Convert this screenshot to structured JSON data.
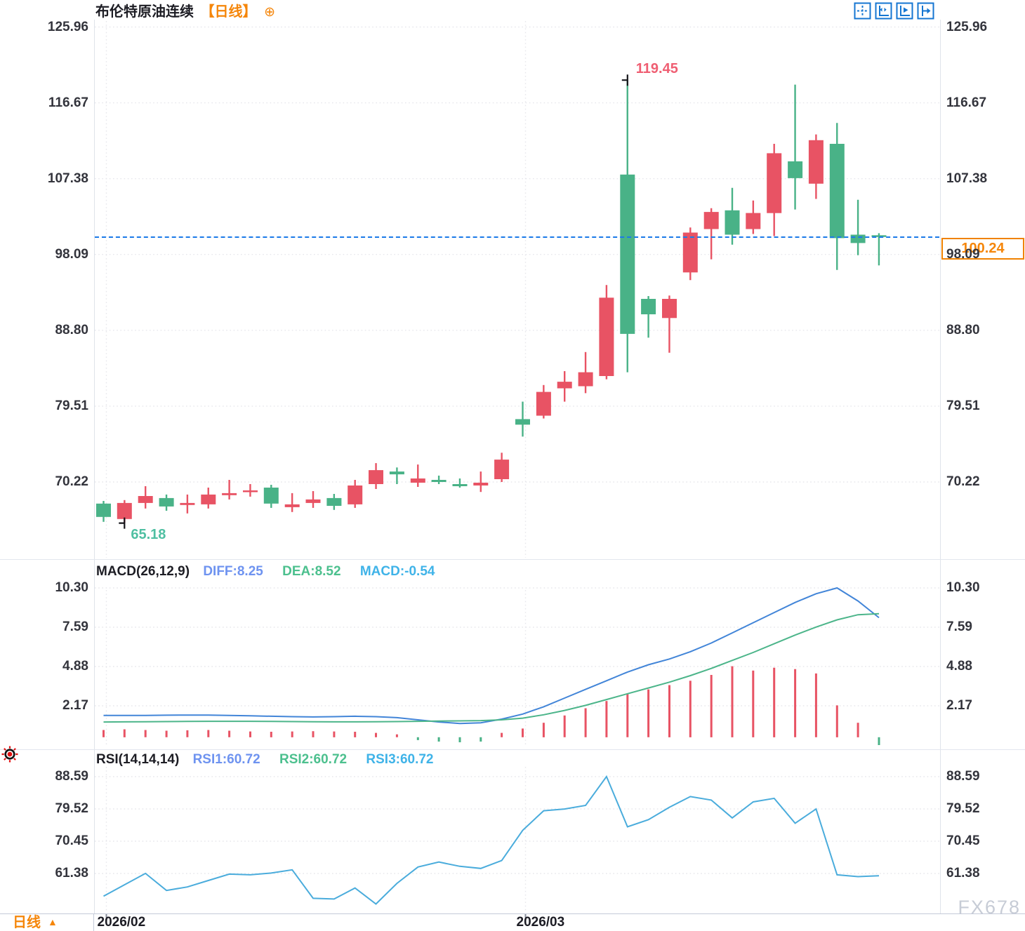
{
  "header": {
    "title": "布伦特原油连续",
    "period_tag": "【日线】",
    "add_icon": "⊕"
  },
  "toolbar": {
    "icons": [
      "pan-crosshair",
      "axis-fit",
      "axis-play",
      "shift-right"
    ]
  },
  "price_panel": {
    "high_label": "119.45",
    "low_label": "65.18",
    "current_price": "100.24"
  },
  "macd_panel": {
    "name_label": "MACD(26,12,9)",
    "diff_label": "DIFF:8.25",
    "dea_label": "DEA:8.52",
    "macd_label": "MACD:-0.54"
  },
  "rsi_panel": {
    "name_label": "RSI(14,14,14)",
    "rsi1_label": "RSI1:60.72",
    "rsi2_label": "RSI2:60.72",
    "rsi3_label": "RSI3:60.72"
  },
  "bottom_bar": {
    "period_label": "日线",
    "dropdown_arrow": "▲",
    "watermark": "FX678"
  },
  "colors": {
    "up": "#e85364",
    "down": "#49b287",
    "accent_orange": "#f5860a",
    "toolbar_blue": "#1576d2",
    "current_price_line": "#1b7ae8",
    "diff_line": "#4285d8",
    "dea_line": "#4cb58a",
    "rsi_line": "#4aacdc",
    "grid": "#e7e7ec",
    "marker_cross": "#15151a"
  },
  "chart_data": {
    "type": "candlestick",
    "title": "布伦特原油连续",
    "interval": "日线",
    "price_axis": {
      "ticks": [
        125.96,
        116.67,
        107.38,
        98.09,
        88.8,
        79.51,
        70.22
      ],
      "high_marker": 119.45,
      "low_marker": 65.18,
      "last_price": 100.24,
      "grid": true
    },
    "candles": [
      [
        67.57,
        67.9,
        65.34,
        65.94
      ],
      [
        65.68,
        68.0,
        65.18,
        67.65
      ],
      [
        67.65,
        69.7,
        66.97,
        68.5
      ],
      [
        68.25,
        68.68,
        66.7,
        67.22
      ],
      [
        67.4,
        68.68,
        66.37,
        67.65
      ],
      [
        67.48,
        69.53,
        66.97,
        68.68
      ],
      [
        68.6,
        70.48,
        68.08,
        68.85
      ],
      [
        69.0,
        69.96,
        68.42,
        69.19
      ],
      [
        69.53,
        69.88,
        67.05,
        67.57
      ],
      [
        67.14,
        68.85,
        66.54,
        67.48
      ],
      [
        67.65,
        69.1,
        67.05,
        68.08
      ],
      [
        68.25,
        68.76,
        66.8,
        67.3
      ],
      [
        67.48,
        70.48,
        67.05,
        69.79
      ],
      [
        69.96,
        72.53,
        69.36,
        71.67
      ],
      [
        71.5,
        72.0,
        69.96,
        71.16
      ],
      [
        70.13,
        72.36,
        69.62,
        70.65
      ],
      [
        70.48,
        71.0,
        69.96,
        70.22
      ],
      [
        69.96,
        70.65,
        69.53,
        69.7
      ],
      [
        69.79,
        71.5,
        69.0,
        70.13
      ],
      [
        70.56,
        73.8,
        70.22,
        72.96
      ],
      [
        77.92,
        80.06,
        75.78,
        77.24
      ],
      [
        78.35,
        82.1,
        78.0,
        81.26
      ],
      [
        81.69,
        83.8,
        80.06,
        82.5
      ],
      [
        81.95,
        86.14,
        81.1,
        83.66
      ],
      [
        83.2,
        94.35,
        82.8,
        92.8
      ],
      [
        107.88,
        119.45,
        83.66,
        88.36
      ],
      [
        92.65,
        93.0,
        87.9,
        90.76
      ],
      [
        90.3,
        93.07,
        86.05,
        92.65
      ],
      [
        95.9,
        101.4,
        94.95,
        100.78
      ],
      [
        101.2,
        103.77,
        97.5,
        103.3
      ],
      [
        103.5,
        106.25,
        99.3,
        100.52
      ],
      [
        101.2,
        104.7,
        100.6,
        103.17
      ],
      [
        103.17,
        111.65,
        100.35,
        110.5
      ],
      [
        109.5,
        118.9,
        103.6,
        107.45
      ],
      [
        106.77,
        112.8,
        104.9,
        112.1
      ],
      [
        111.65,
        114.2,
        96.2,
        100.1
      ],
      [
        100.52,
        104.8,
        98.0,
        99.5
      ],
      [
        100.45,
        100.7,
        96.75,
        100.24
      ]
    ],
    "macd": {
      "params": "26,12,9",
      "diff": 8.25,
      "dea": 8.52,
      "macd": -0.54,
      "axis_ticks": [
        10.3,
        7.59,
        4.88,
        2.17
      ],
      "diff_series": [
        1.5,
        1.5,
        1.5,
        1.52,
        1.53,
        1.53,
        1.5,
        1.48,
        1.45,
        1.42,
        1.4,
        1.42,
        1.45,
        1.42,
        1.35,
        1.2,
        1.05,
        0.95,
        1.0,
        1.25,
        1.6,
        2.1,
        2.7,
        3.3,
        3.9,
        4.5,
        5.0,
        5.4,
        5.9,
        6.5,
        7.2,
        7.9,
        8.6,
        9.3,
        9.9,
        10.3,
        9.4,
        8.25
      ],
      "dea_series": [
        1.05,
        1.06,
        1.07,
        1.08,
        1.09,
        1.1,
        1.1,
        1.1,
        1.09,
        1.08,
        1.07,
        1.06,
        1.06,
        1.07,
        1.08,
        1.1,
        1.12,
        1.13,
        1.15,
        1.2,
        1.32,
        1.55,
        1.85,
        2.2,
        2.6,
        3.0,
        3.4,
        3.8,
        4.25,
        4.75,
        5.3,
        5.85,
        6.45,
        7.05,
        7.6,
        8.1,
        8.45,
        8.52
      ],
      "histogram": [
        0.5,
        0.55,
        0.5,
        0.45,
        0.48,
        0.5,
        0.45,
        0.4,
        0.38,
        0.4,
        0.42,
        0.4,
        0.38,
        0.3,
        0.2,
        -0.2,
        -0.3,
        -0.35,
        -0.3,
        0.3,
        0.6,
        1.0,
        1.5,
        2.0,
        2.5,
        3.0,
        3.3,
        3.6,
        3.9,
        4.3,
        4.9,
        4.6,
        4.8,
        4.7,
        4.4,
        2.2,
        1.0,
        -0.54
      ]
    },
    "rsi": {
      "params": "14,14,14",
      "rsi1": 60.72,
      "rsi2": 60.72,
      "rsi3": 60.72,
      "axis_ticks": [
        88.59,
        79.52,
        70.45,
        61.38
      ],
      "series": [
        55.0,
        58.2,
        61.4,
        56.6,
        57.6,
        59.4,
        61.2,
        61.0,
        61.5,
        62.4,
        54.4,
        54.2,
        57.3,
        52.8,
        58.6,
        63.2,
        64.6,
        63.4,
        62.8,
        65.0,
        73.5,
        79.0,
        79.5,
        80.5,
        88.6,
        74.5,
        76.5,
        80.0,
        83.0,
        82.0,
        77.0,
        81.5,
        82.5,
        75.5,
        79.5,
        61.0,
        60.5,
        60.72
      ]
    },
    "x_axis": {
      "month_markers": [
        {
          "label": "2026/02",
          "index": 0
        },
        {
          "label": "2026/03",
          "index": 20
        }
      ]
    }
  }
}
